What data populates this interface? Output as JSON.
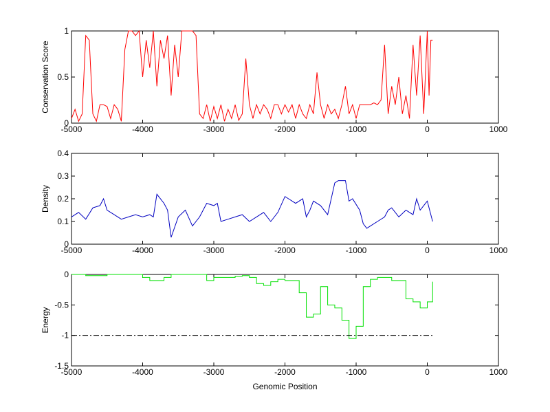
{
  "chart_data": [
    {
      "type": "line",
      "ylabel": "Conservation Score",
      "xlim": [
        -5000,
        1000
      ],
      "xticks": [
        -5000,
        -4000,
        -3000,
        -2000,
        -1000,
        0,
        1000
      ],
      "ylim": [
        0,
        1
      ],
      "yticks": [
        0,
        0.5,
        1
      ],
      "series": [
        {
          "color": "#ff0000",
          "x": [
            -5000,
            -4950,
            -4900,
            -4850,
            -4800,
            -4750,
            -4700,
            -4650,
            -4600,
            -4550,
            -4500,
            -4450,
            -4400,
            -4350,
            -4300,
            -4250,
            -4200,
            -4150,
            -4100,
            -4050,
            -4000,
            -3950,
            -3900,
            -3850,
            -3800,
            -3750,
            -3700,
            -3650,
            -3600,
            -3550,
            -3500,
            -3450,
            -3400,
            -3350,
            -3300,
            -3250,
            -3200,
            -3150,
            -3100,
            -3050,
            -3000,
            -2950,
            -2900,
            -2850,
            -2800,
            -2750,
            -2700,
            -2650,
            -2600,
            -2550,
            -2500,
            -2450,
            -2400,
            -2350,
            -2300,
            -2250,
            -2200,
            -2150,
            -2100,
            -2050,
            -2000,
            -1950,
            -1900,
            -1850,
            -1800,
            -1750,
            -1700,
            -1650,
            -1600,
            -1550,
            -1500,
            -1450,
            -1400,
            -1350,
            -1300,
            -1250,
            -1200,
            -1150,
            -1100,
            -1050,
            -1000,
            -950,
            -900,
            -850,
            -800,
            -750,
            -700,
            -650,
            -600,
            -550,
            -500,
            -450,
            -400,
            -350,
            -300,
            -250,
            -200,
            -150,
            -100,
            -50,
            0,
            25,
            50,
            75
          ],
          "values": [
            0.05,
            0.15,
            0.02,
            0.1,
            0.95,
            0.9,
            0.1,
            0.02,
            0.2,
            0.2,
            0.18,
            0.05,
            0.2,
            0.15,
            0.02,
            0.8,
            1,
            1,
            0.95,
            1,
            0.5,
            0.9,
            0.6,
            1,
            0.4,
            0.9,
            0.7,
            0.95,
            0.3,
            0.85,
            0.5,
            1,
            1,
            1,
            1,
            0.95,
            0.1,
            0.05,
            0.2,
            0.02,
            0.18,
            0.05,
            0.2,
            0.02,
            0.15,
            0.05,
            0.2,
            0.03,
            0.1,
            0.7,
            0.2,
            0.05,
            0.2,
            0.1,
            0.2,
            0.15,
            0.05,
            0.2,
            0.2,
            0.1,
            0.2,
            0.12,
            0.2,
            0.05,
            0.2,
            0.1,
            0.05,
            0.2,
            0.1,
            0.55,
            0.2,
            0.05,
            0.2,
            0.1,
            0.15,
            0.05,
            0.2,
            0.4,
            0.1,
            0.2,
            0.05,
            0.2,
            0.2,
            0.2,
            0.2,
            0.22,
            0.2,
            0.25,
            0.85,
            0.1,
            0.4,
            0.2,
            0.5,
            0.1,
            0.3,
            0.05,
            0.85,
            0.3,
            0.95,
            0.1,
            1,
            0.3,
            0.9,
            0.9
          ]
        }
      ]
    },
    {
      "type": "line",
      "ylabel": "Density",
      "xlim": [
        -5000,
        1000
      ],
      "xticks": [
        -5000,
        -4000,
        -3000,
        -2000,
        -1000,
        0,
        1000
      ],
      "ylim": [
        0,
        0.4
      ],
      "yticks": [
        0,
        0.1,
        0.2,
        0.3,
        0.4
      ],
      "series": [
        {
          "color": "#0000c0",
          "x": [
            -5000,
            -4900,
            -4800,
            -4700,
            -4600,
            -4550,
            -4500,
            -4400,
            -4300,
            -4200,
            -4100,
            -4000,
            -3900,
            -3850,
            -3800,
            -3700,
            -3650,
            -3600,
            -3500,
            -3400,
            -3300,
            -3200,
            -3100,
            -3000,
            -2950,
            -2900,
            -2800,
            -2700,
            -2600,
            -2500,
            -2400,
            -2300,
            -2200,
            -2100,
            -2000,
            -1950,
            -1850,
            -1750,
            -1700,
            -1650,
            -1600,
            -1500,
            -1400,
            -1300,
            -1250,
            -1150,
            -1100,
            -1050,
            -950,
            -900,
            -850,
            -800,
            -700,
            -600,
            -550,
            -500,
            -400,
            -300,
            -250,
            -200,
            -150,
            -100,
            -50,
            0,
            25,
            75
          ],
          "values": [
            0.12,
            0.14,
            0.11,
            0.16,
            0.17,
            0.2,
            0.15,
            0.13,
            0.11,
            0.12,
            0.13,
            0.12,
            0.13,
            0.12,
            0.22,
            0.18,
            0.15,
            0.03,
            0.12,
            0.15,
            0.08,
            0.12,
            0.18,
            0.17,
            0.18,
            0.1,
            0.11,
            0.12,
            0.13,
            0.1,
            0.12,
            0.14,
            0.1,
            0.14,
            0.21,
            0.2,
            0.18,
            0.2,
            0.12,
            0.15,
            0.19,
            0.17,
            0.13,
            0.27,
            0.28,
            0.28,
            0.19,
            0.2,
            0.15,
            0.09,
            0.07,
            0.08,
            0.1,
            0.12,
            0.15,
            0.16,
            0.12,
            0.15,
            0.14,
            0.13,
            0.2,
            0.15,
            0.17,
            0.19,
            0.16,
            0.1
          ]
        }
      ]
    },
    {
      "type": "line",
      "ylabel": "Energy",
      "xlabel": "Genomic Position",
      "xlim": [
        -5000,
        1000
      ],
      "xticks": [
        -5000,
        -4000,
        -3000,
        -2000,
        -1000,
        0,
        1000
      ],
      "ylim": [
        -1.5,
        0
      ],
      "yticks": [
        -1.5,
        -1,
        -0.5,
        0
      ],
      "series": [
        {
          "color": "#00e000",
          "step": true,
          "x": [
            -5000,
            -4900,
            -4800,
            -4700,
            -4600,
            -4500,
            -4400,
            -4300,
            -4200,
            -4100,
            -4000,
            -3900,
            -3800,
            -3700,
            -3600,
            -3500,
            -3400,
            -3300,
            -3200,
            -3100,
            -3000,
            -2900,
            -2800,
            -2700,
            -2600,
            -2500,
            -2400,
            -2300,
            -2200,
            -2100,
            -2000,
            -1900,
            -1800,
            -1700,
            -1600,
            -1500,
            -1400,
            -1300,
            -1200,
            -1100,
            -1000,
            -900,
            -800,
            -700,
            -600,
            -500,
            -400,
            -300,
            -200,
            -100,
            0,
            75
          ],
          "values": [
            0,
            0,
            -0.02,
            -0.02,
            -0.02,
            0,
            0,
            0,
            0,
            0,
            -0.05,
            -0.1,
            -0.1,
            -0.05,
            0,
            0,
            0,
            0,
            0,
            -0.1,
            -0.05,
            -0.05,
            -0.05,
            -0.03,
            -0.02,
            -0.05,
            -0.15,
            -0.18,
            -0.12,
            -0.08,
            -0.1,
            -0.1,
            -0.3,
            -0.7,
            -0.65,
            -0.2,
            -0.5,
            -0.55,
            -0.75,
            -1.05,
            -0.85,
            -0.2,
            -0.08,
            -0.05,
            -0.05,
            -0.1,
            -0.1,
            -0.4,
            -0.45,
            -0.55,
            -0.45,
            -0.12
          ]
        },
        {
          "color": "#000000",
          "dash": "dashdot",
          "x": [
            -5000,
            80
          ],
          "values": [
            -1,
            -1
          ]
        }
      ]
    }
  ]
}
